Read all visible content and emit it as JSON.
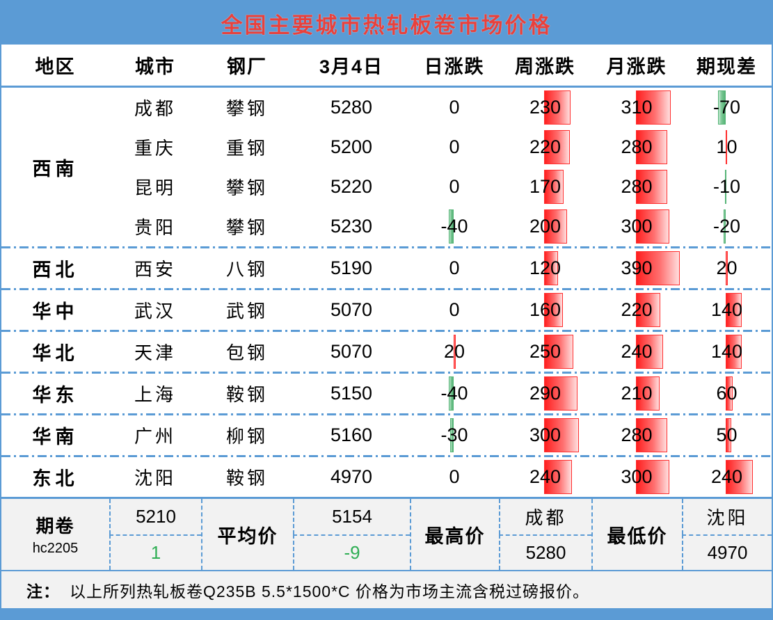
{
  "title": "全国主要城市热轧板卷市场价格",
  "columns": [
    "地区",
    "城市",
    "钢厂",
    "3月4日",
    "日涨跌",
    "周涨跌",
    "月涨跌",
    "期现差"
  ],
  "groups": [
    {
      "region": "西南",
      "rows": [
        {
          "city": "成都",
          "mill": "攀钢",
          "price": 5280,
          "day": 0,
          "week": 230,
          "month": 310,
          "basis": -70
        },
        {
          "city": "重庆",
          "mill": "重钢",
          "price": 5200,
          "day": 0,
          "week": 220,
          "month": 280,
          "basis": 10
        },
        {
          "city": "昆明",
          "mill": "攀钢",
          "price": 5220,
          "day": 0,
          "week": 170,
          "month": 280,
          "basis": -10
        },
        {
          "city": "贵阳",
          "mill": "攀钢",
          "price": 5230,
          "day": -40,
          "week": 200,
          "month": 300,
          "basis": -20
        }
      ]
    },
    {
      "region": "西北",
      "rows": [
        {
          "city": "西安",
          "mill": "八钢",
          "price": 5190,
          "day": 0,
          "week": 120,
          "month": 390,
          "basis": 20
        }
      ]
    },
    {
      "region": "华中",
      "rows": [
        {
          "city": "武汉",
          "mill": "武钢",
          "price": 5070,
          "day": 0,
          "week": 160,
          "month": 220,
          "basis": 140
        }
      ]
    },
    {
      "region": "华北",
      "rows": [
        {
          "city": "天津",
          "mill": "包钢",
          "price": 5070,
          "day": 20,
          "week": 250,
          "month": 240,
          "basis": 140
        }
      ]
    },
    {
      "region": "华东",
      "rows": [
        {
          "city": "上海",
          "mill": "鞍钢",
          "price": 5150,
          "day": -40,
          "week": 290,
          "month": 210,
          "basis": 60
        }
      ]
    },
    {
      "region": "华南",
      "rows": [
        {
          "city": "广州",
          "mill": "柳钢",
          "price": 5160,
          "day": -30,
          "week": 300,
          "month": 280,
          "basis": 50
        }
      ]
    },
    {
      "region": "东北",
      "rows": [
        {
          "city": "沈阳",
          "mill": "鞍钢",
          "price": 4970,
          "day": 0,
          "week": 240,
          "month": 300,
          "basis": 240
        }
      ]
    }
  ],
  "summary": {
    "futures_label": "期卷",
    "futures_code": "hc2205",
    "futures_price": "5210",
    "futures_change": "1",
    "avg_label": "平均价",
    "avg_price": "5154",
    "avg_change": "-9",
    "high_label": "最高价",
    "high_city": "成都",
    "high_price": "5280",
    "low_label": "最低价",
    "low_city": "沈阳",
    "low_price": "4970"
  },
  "note": {
    "prefix": "注：",
    "text": "以上所列热轧板卷Q235B 5.5*1500*C 价格为市场主流含税过磅报价。"
  },
  "colors": {
    "band_blue": "#5b9bd5",
    "title_red": "#e8413c",
    "positive_bar": "#ff2d2d",
    "negative_bar": "#55b476",
    "summary_bg": "#f2f2f2",
    "change_green_text": "#2fae54"
  },
  "chart_data": {
    "type": "table",
    "title": "全国主要城市热轧板卷市场价格",
    "columns": [
      "地区",
      "城市",
      "钢厂",
      "3月4日",
      "日涨跌",
      "周涨跌",
      "月涨跌",
      "期现差"
    ],
    "rows": [
      [
        "西南",
        "成都",
        "攀钢",
        5280,
        0,
        230,
        310,
        -70
      ],
      [
        "西南",
        "重庆",
        "重钢",
        5200,
        0,
        220,
        280,
        10
      ],
      [
        "西南",
        "昆明",
        "攀钢",
        5220,
        0,
        170,
        280,
        -10
      ],
      [
        "西南",
        "贵阳",
        "攀钢",
        5230,
        -40,
        200,
        300,
        -20
      ],
      [
        "西北",
        "西安",
        "八钢",
        5190,
        0,
        120,
        390,
        20
      ],
      [
        "华中",
        "武汉",
        "武钢",
        5070,
        0,
        160,
        220,
        140
      ],
      [
        "华北",
        "天津",
        "包钢",
        5070,
        20,
        250,
        240,
        140
      ],
      [
        "华东",
        "上海",
        "鞍钢",
        5150,
        -40,
        290,
        210,
        60
      ],
      [
        "华南",
        "广州",
        "柳钢",
        5160,
        -30,
        300,
        280,
        50
      ],
      [
        "东北",
        "沈阳",
        "鞍钢",
        4970,
        0,
        240,
        300,
        240
      ]
    ],
    "databar_note": "红色渐变条=正值, 绿色条=负值, 轴在单元格49%处, 条长≈|值|/400×50%宽",
    "summary_row": {
      "期卷 hc2205": [
        5210,
        1
      ],
      "平均价": [
        5154,
        -9
      ],
      "最高价": [
        "成都",
        5280
      ],
      "最低价": [
        "沈阳",
        4970
      ]
    }
  }
}
